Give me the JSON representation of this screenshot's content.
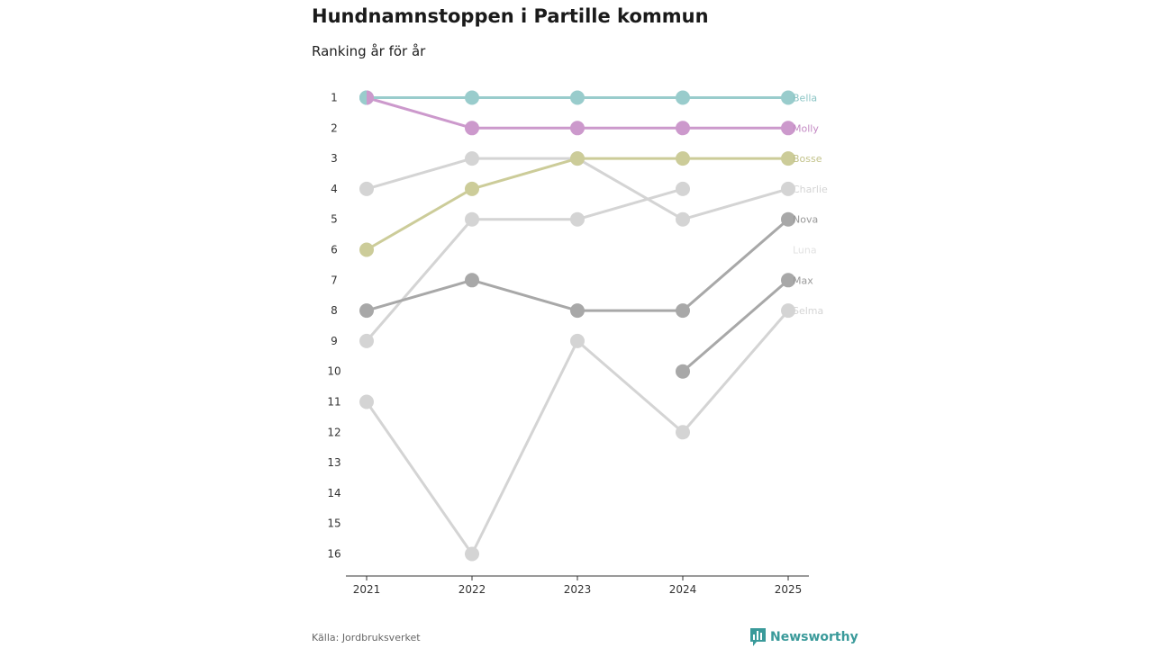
{
  "title": "Hundnamnstoppen i Partille kommun",
  "subtitle": "Ranking år för år",
  "source": "Källa: Jordbruksverket",
  "brand": "Newsworthy",
  "chart_data": {
    "type": "line",
    "x": [
      "2021",
      "2022",
      "2023",
      "2024",
      "2025"
    ],
    "y_ticks": [
      1,
      2,
      3,
      4,
      5,
      6,
      7,
      8,
      9,
      10,
      11,
      12,
      13,
      14,
      15,
      16
    ],
    "y_reversed": true,
    "ylim": [
      1,
      16
    ],
    "series": [
      {
        "name": "Selma",
        "values": [
          11,
          16,
          9,
          12,
          8
        ],
        "color": "#d4d4d4",
        "label_color": "#d4d4d4"
      },
      {
        "name": "Luna",
        "values": [
          9,
          5,
          5,
          4,
          null
        ],
        "color": "#d4d4d4",
        "label_color": "#e2e2e2"
      },
      {
        "name": "Charlie",
        "values": [
          4,
          3,
          3,
          5,
          4
        ],
        "color": "#d4d4d4",
        "label_color": "#d4d4d4"
      },
      {
        "name": "Max",
        "values": [
          null,
          null,
          null,
          10,
          7
        ],
        "color": "#a8a8a8",
        "label_color": "#999999"
      },
      {
        "name": "Nova",
        "values": [
          8,
          7,
          8,
          8,
          5
        ],
        "color": "#a8a8a8",
        "label_color": "#999999"
      },
      {
        "name": "Bosse",
        "values": [
          6,
          4,
          3,
          3,
          3
        ],
        "color": "#cccc99",
        "label_color": "#c2c28a"
      },
      {
        "name": "Molly",
        "values": [
          1,
          2,
          2,
          2,
          2
        ],
        "color": "#cc99cc",
        "label_color": "#c48ac4"
      },
      {
        "name": "Bella",
        "values": [
          1,
          1,
          1,
          1,
          1
        ],
        "color": "#99cccc",
        "label_color": "#8ac4c4"
      }
    ]
  }
}
